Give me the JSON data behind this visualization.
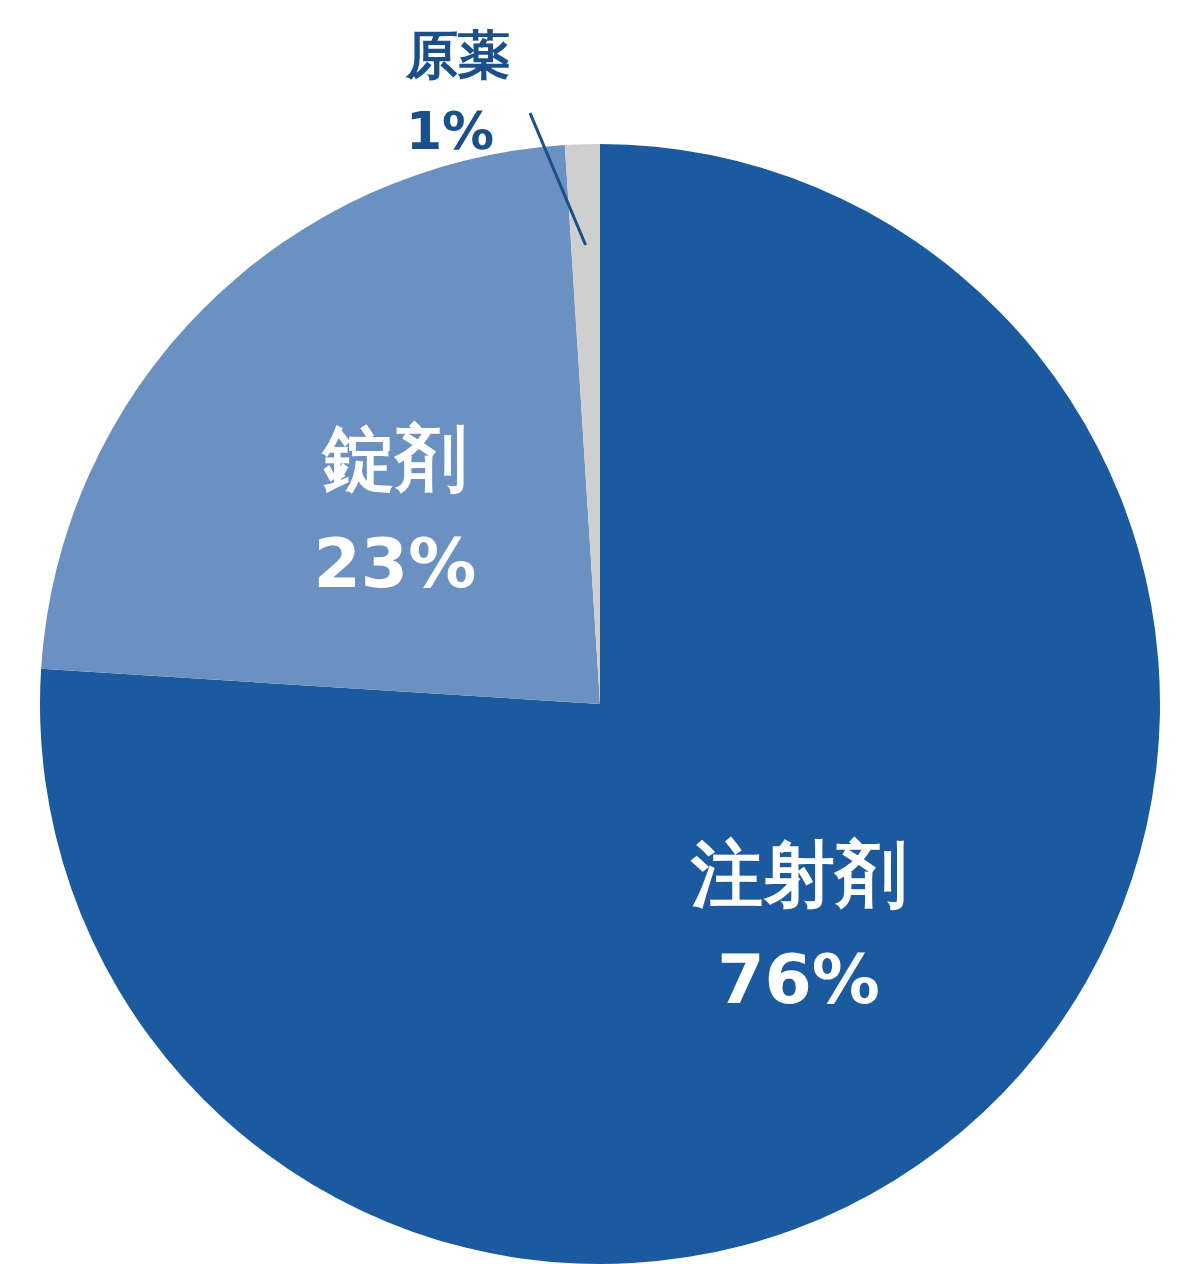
{
  "chart_data": {
    "type": "pie",
    "categories": [
      "注射剤",
      "錠剤",
      "原薬"
    ],
    "values": [
      76,
      23,
      1
    ],
    "colors": [
      "#1b5a9e",
      "#6b90c2",
      "#cfcfcf"
    ],
    "value_labels": [
      "76%",
      "23%",
      "1%"
    ]
  }
}
